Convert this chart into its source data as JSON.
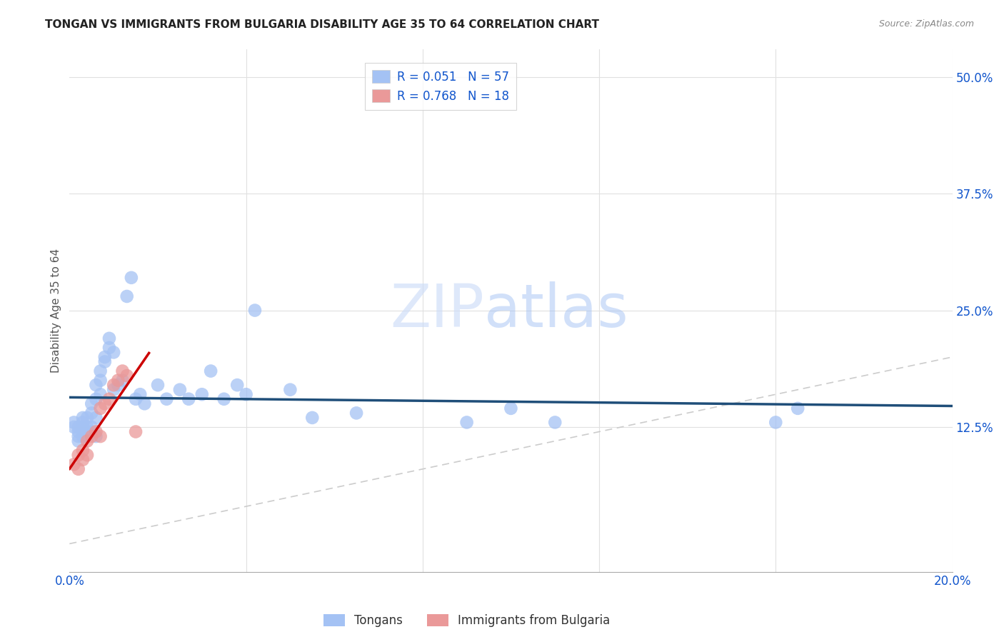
{
  "title": "TONGAN VS IMMIGRANTS FROM BULGARIA DISABILITY AGE 35 TO 64 CORRELATION CHART",
  "source": "Source: ZipAtlas.com",
  "ylabel": "Disability Age 35 to 64",
  "xlim": [
    0.0,
    0.2
  ],
  "ylim": [
    -0.03,
    0.53
  ],
  "yticks": [
    0.125,
    0.25,
    0.375,
    0.5
  ],
  "ytick_labels": [
    "12.5%",
    "25.0%",
    "37.5%",
    "50.0%"
  ],
  "xticks": [
    0.0,
    0.04,
    0.08,
    0.12,
    0.16,
    0.2
  ],
  "xtick_labels": [
    "0.0%",
    "",
    "",
    "",
    "",
    "20.0%"
  ],
  "legend_label1": "Tongans",
  "legend_label2": "Immigrants from Bulgaria",
  "blue_color": "#a4c2f4",
  "pink_color": "#ea9999",
  "line_blue": "#1f4e79",
  "line_pink": "#cc0000",
  "diagonal_color": "#cccccc",
  "text_color_blue": "#1155cc",
  "background": "#ffffff",
  "grid_color": "#e0e0e0",
  "tongan_x": [
    0.001,
    0.001,
    0.002,
    0.002,
    0.002,
    0.002,
    0.003,
    0.003,
    0.003,
    0.003,
    0.003,
    0.004,
    0.004,
    0.004,
    0.004,
    0.005,
    0.005,
    0.005,
    0.005,
    0.006,
    0.006,
    0.006,
    0.006,
    0.007,
    0.007,
    0.007,
    0.008,
    0.008,
    0.009,
    0.009,
    0.01,
    0.01,
    0.011,
    0.012,
    0.013,
    0.014,
    0.015,
    0.016,
    0.017,
    0.02,
    0.022,
    0.025,
    0.027,
    0.03,
    0.032,
    0.035,
    0.038,
    0.04,
    0.042,
    0.05,
    0.055,
    0.065,
    0.09,
    0.1,
    0.11,
    0.16,
    0.165
  ],
  "tongan_y": [
    0.125,
    0.13,
    0.115,
    0.12,
    0.125,
    0.11,
    0.12,
    0.125,
    0.115,
    0.13,
    0.135,
    0.115,
    0.125,
    0.12,
    0.135,
    0.12,
    0.125,
    0.14,
    0.15,
    0.115,
    0.135,
    0.155,
    0.17,
    0.16,
    0.175,
    0.185,
    0.195,
    0.2,
    0.21,
    0.22,
    0.205,
    0.165,
    0.17,
    0.175,
    0.265,
    0.285,
    0.155,
    0.16,
    0.15,
    0.17,
    0.155,
    0.165,
    0.155,
    0.16,
    0.185,
    0.155,
    0.17,
    0.16,
    0.25,
    0.165,
    0.135,
    0.14,
    0.13,
    0.145,
    0.13,
    0.13,
    0.145
  ],
  "bulgaria_x": [
    0.001,
    0.002,
    0.002,
    0.003,
    0.003,
    0.004,
    0.004,
    0.005,
    0.006,
    0.007,
    0.007,
    0.008,
    0.009,
    0.01,
    0.011,
    0.012,
    0.013,
    0.015
  ],
  "bulgaria_y": [
    0.085,
    0.095,
    0.08,
    0.09,
    0.1,
    0.095,
    0.11,
    0.115,
    0.12,
    0.145,
    0.115,
    0.15,
    0.155,
    0.17,
    0.175,
    0.185,
    0.18,
    0.12
  ],
  "watermark_zip": "ZIP",
  "watermark_atlas": "atlas"
}
